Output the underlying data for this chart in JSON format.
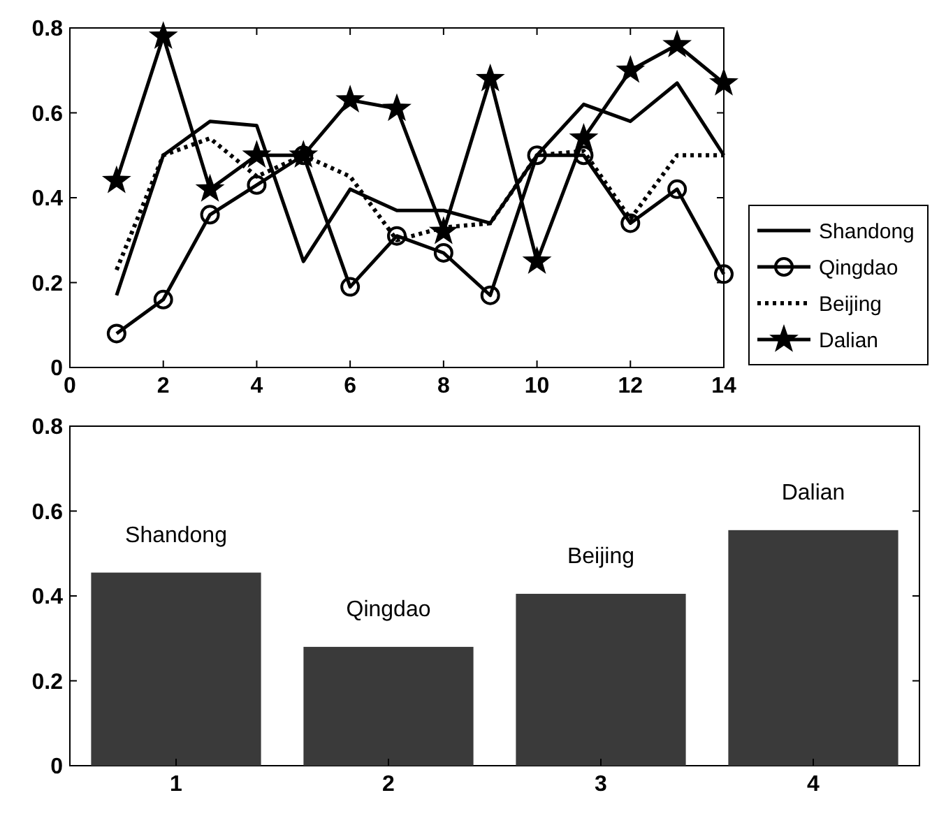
{
  "chart_data": [
    {
      "type": "line",
      "x": [
        1,
        2,
        3,
        4,
        5,
        6,
        7,
        8,
        9,
        10,
        11,
        12,
        13,
        14
      ],
      "xlim": [
        0,
        14
      ],
      "xticks": [
        0,
        2,
        4,
        6,
        8,
        10,
        12,
        14
      ],
      "ylim": [
        0,
        0.8
      ],
      "yticks": [
        0,
        0.2,
        0.4,
        0.6,
        0.8
      ],
      "grid": false,
      "legend": "right",
      "series": [
        {
          "name": "Shandong",
          "color": "#000000",
          "marker": "none",
          "line_style": "solid",
          "values": [
            0.17,
            0.5,
            0.58,
            0.57,
            0.25,
            0.42,
            0.37,
            0.37,
            0.34,
            0.5,
            0.62,
            0.58,
            0.67,
            0.5
          ]
        },
        {
          "name": "Qingdao",
          "color": "#000000",
          "marker": "circle",
          "line_style": "solid",
          "values": [
            0.08,
            0.16,
            0.36,
            0.43,
            0.5,
            0.19,
            0.31,
            0.27,
            0.17,
            0.5,
            0.5,
            0.34,
            0.42,
            0.22
          ]
        },
        {
          "name": "Beijing",
          "color": "#000000",
          "marker": "none",
          "line_style": "dotted",
          "values": [
            0.23,
            0.5,
            0.54,
            0.45,
            0.5,
            0.45,
            0.3,
            0.33,
            0.34,
            0.5,
            0.51,
            0.35,
            0.5,
            0.5
          ]
        },
        {
          "name": "Dalian",
          "color": "#000000",
          "marker": "star",
          "line_style": "solid",
          "values": [
            0.44,
            0.78,
            0.42,
            0.5,
            0.5,
            0.63,
            0.61,
            0.32,
            0.68,
            0.25,
            0.54,
            0.7,
            0.76,
            0.67
          ]
        }
      ]
    },
    {
      "type": "bar",
      "categories": [
        "1",
        "2",
        "3",
        "4"
      ],
      "values": [
        0.455,
        0.28,
        0.405,
        0.555
      ],
      "color": "#3a3a3a",
      "ylim": [
        0,
        0.8
      ],
      "yticks": [
        0,
        0.2,
        0.4,
        0.6,
        0.8
      ],
      "grid": false,
      "annotations": [
        "Shandong",
        "Qingdao",
        "Beijing",
        "Dalian"
      ]
    }
  ]
}
